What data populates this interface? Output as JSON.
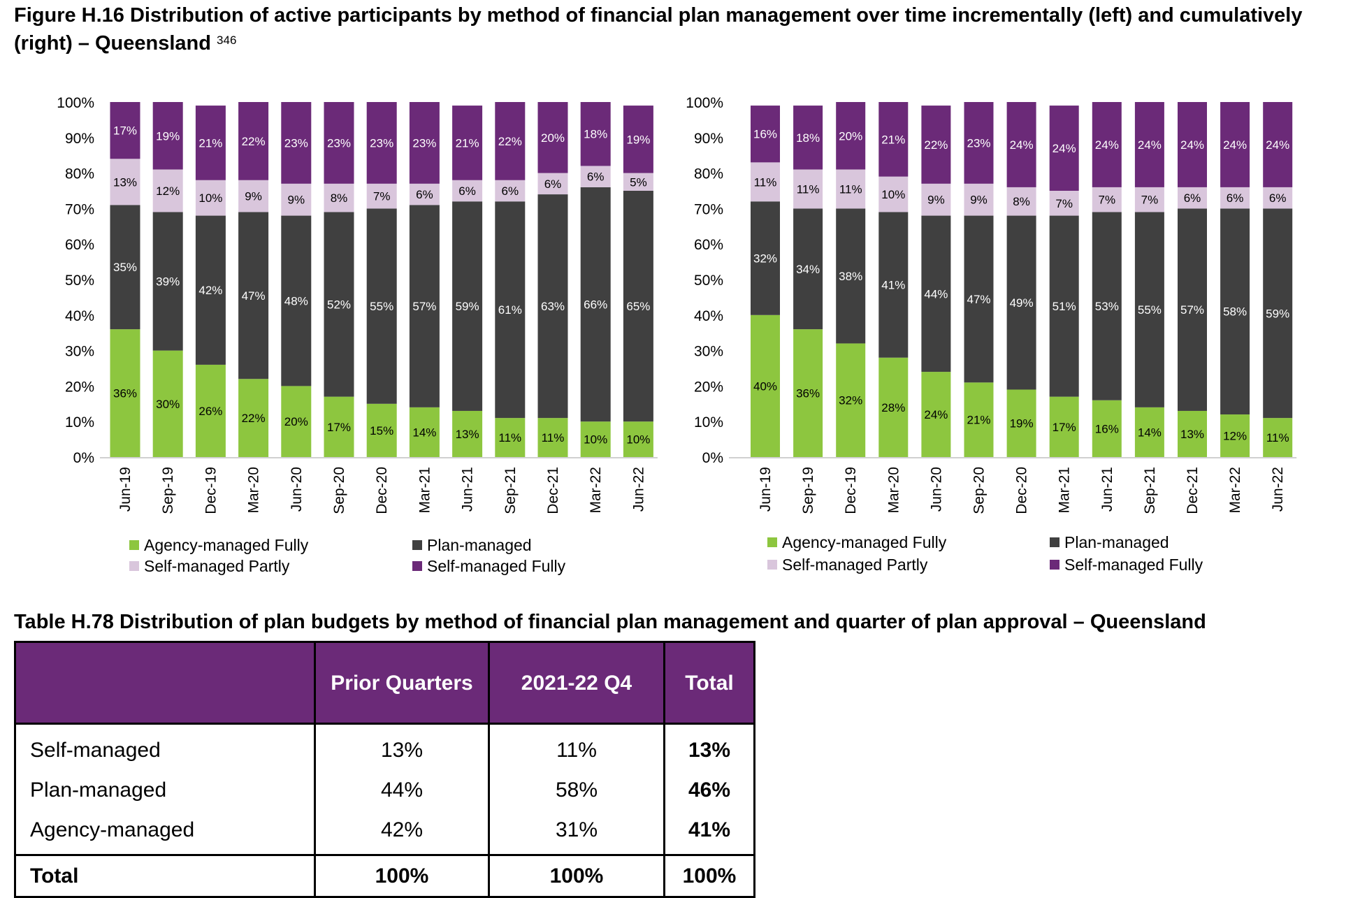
{
  "figure": {
    "title": "Figure H.16 Distribution of active participants by method of financial plan management over time incrementally (left) and cumulatively (right) – Queensland",
    "footnote": "346"
  },
  "colors": {
    "agency_managed_fully": "#8dc63f",
    "plan_managed": "#404040",
    "self_managed_partly": "#d9c6dc",
    "self_managed_fully": "#6b2a78"
  },
  "chart_data": [
    {
      "type": "bar",
      "stacked": true,
      "title": "",
      "xlabel": "",
      "ylabel": "",
      "ylim": [
        0,
        100
      ],
      "yticks": [
        "0%",
        "10%",
        "20%",
        "30%",
        "40%",
        "50%",
        "60%",
        "70%",
        "80%",
        "90%",
        "100%"
      ],
      "grid": false,
      "legend_position": "bottom",
      "categories": [
        "Jun-19",
        "Sep-19",
        "Dec-19",
        "Mar-20",
        "Jun-20",
        "Sep-20",
        "Dec-20",
        "Mar-21",
        "Jun-21",
        "Sep-21",
        "Dec-21",
        "Mar-22",
        "Jun-22"
      ],
      "series": [
        {
          "name": "Agency-managed Fully",
          "values": [
            36,
            30,
            26,
            22,
            20,
            17,
            15,
            14,
            13,
            11,
            11,
            10,
            10
          ]
        },
        {
          "name": "Plan-managed",
          "values": [
            35,
            39,
            42,
            47,
            48,
            52,
            55,
            57,
            59,
            61,
            63,
            66,
            65
          ]
        },
        {
          "name": "Self-managed Partly",
          "values": [
            13,
            12,
            10,
            9,
            9,
            8,
            7,
            6,
            6,
            6,
            6,
            6,
            5
          ]
        },
        {
          "name": "Self-managed Fully",
          "values": [
            17,
            19,
            21,
            22,
            23,
            23,
            23,
            23,
            21,
            22,
            20,
            18,
            19
          ]
        }
      ]
    },
    {
      "type": "bar",
      "stacked": true,
      "title": "",
      "xlabel": "",
      "ylabel": "",
      "ylim": [
        0,
        100
      ],
      "yticks": [
        "0%",
        "10%",
        "20%",
        "30%",
        "40%",
        "50%",
        "60%",
        "70%",
        "80%",
        "90%",
        "100%"
      ],
      "grid": false,
      "legend_position": "bottom",
      "categories": [
        "Jun-19",
        "Sep-19",
        "Dec-19",
        "Mar-20",
        "Jun-20",
        "Sep-20",
        "Dec-20",
        "Mar-21",
        "Jun-21",
        "Sep-21",
        "Dec-21",
        "Mar-22",
        "Jun-22"
      ],
      "series": [
        {
          "name": "Agency-managed Fully",
          "values": [
            40,
            36,
            32,
            28,
            24,
            21,
            19,
            17,
            16,
            14,
            13,
            12,
            11
          ]
        },
        {
          "name": "Plan-managed",
          "values": [
            32,
            34,
            38,
            41,
            44,
            47,
            49,
            51,
            53,
            55,
            57,
            58,
            59
          ]
        },
        {
          "name": "Self-managed Partly",
          "values": [
            11,
            11,
            11,
            10,
            9,
            9,
            8,
            7,
            7,
            7,
            6,
            6,
            6
          ]
        },
        {
          "name": "Self-managed Fully",
          "values": [
            16,
            18,
            20,
            21,
            22,
            23,
            24,
            24,
            24,
            24,
            24,
            24,
            24
          ]
        }
      ]
    }
  ],
  "table": {
    "title": "Table H.78 Distribution of plan budgets by method of financial plan management and quarter of plan approval – Queensland",
    "headers": [
      "",
      "Prior Quarters",
      "2021-22 Q4",
      "Total"
    ],
    "rows": [
      {
        "label": "Self-managed",
        "prior": "13%",
        "q4": "11%",
        "total": "13%"
      },
      {
        "label": "Plan-managed",
        "prior": "44%",
        "q4": "58%",
        "total": "46%"
      },
      {
        "label": "Agency-managed",
        "prior": "42%",
        "q4": "31%",
        "total": "41%"
      }
    ],
    "total_row": {
      "label": "Total",
      "prior": "100%",
      "q4": "100%",
      "total": "100%"
    }
  }
}
